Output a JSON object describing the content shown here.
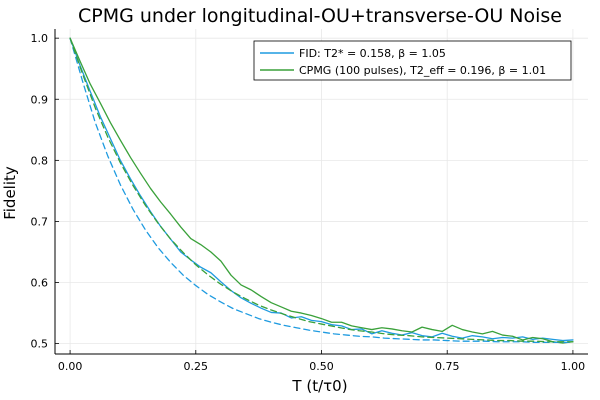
{
  "chart_data": {
    "type": "line",
    "title": "CPMG under longitudinal-OU+transverse-OU Noise",
    "xlabel": "T (t/τ0)",
    "ylabel": "Fidelity",
    "xlim": [
      -0.03,
      1.03
    ],
    "ylim": [
      0.483,
      1.015
    ],
    "xticks": [
      0.0,
      0.25,
      0.5,
      0.75,
      1.0
    ],
    "xtick_labels": [
      "0.00",
      "0.25",
      "0.50",
      "0.75",
      "1.00"
    ],
    "yticks": [
      0.5,
      0.6,
      0.7,
      0.8,
      0.9,
      1.0
    ],
    "ytick_labels": [
      "0.5",
      "0.6",
      "0.7",
      "0.8",
      "0.9",
      "1.0"
    ],
    "grid": true,
    "legend_position": "top-right",
    "series": [
      {
        "name": "FID: T2* = 0.158, β = 1.05",
        "color": "#1f9be0",
        "style": "solid",
        "x": [
          0.0,
          0.02,
          0.04,
          0.06,
          0.08,
          0.1,
          0.12,
          0.14,
          0.16,
          0.18,
          0.2,
          0.22,
          0.24,
          0.26,
          0.28,
          0.3,
          0.32,
          0.34,
          0.36,
          0.38,
          0.4,
          0.42,
          0.44,
          0.46,
          0.48,
          0.5,
          0.52,
          0.54,
          0.56,
          0.58,
          0.6,
          0.62,
          0.64,
          0.66,
          0.68,
          0.7,
          0.72,
          0.74,
          0.76,
          0.78,
          0.8,
          0.82,
          0.84,
          0.86,
          0.88,
          0.9,
          0.92,
          0.94,
          0.96,
          0.98,
          1.0
        ],
        "y": [
          1.0,
          0.955,
          0.913,
          0.872,
          0.836,
          0.8,
          0.77,
          0.742,
          0.716,
          0.692,
          0.671,
          0.65,
          0.637,
          0.625,
          0.616,
          0.601,
          0.587,
          0.575,
          0.566,
          0.558,
          0.551,
          0.55,
          0.542,
          0.544,
          0.538,
          0.536,
          0.531,
          0.529,
          0.523,
          0.524,
          0.516,
          0.521,
          0.517,
          0.514,
          0.518,
          0.513,
          0.511,
          0.517,
          0.512,
          0.509,
          0.513,
          0.511,
          0.508,
          0.51,
          0.509,
          0.511,
          0.507,
          0.509,
          0.507,
          0.505,
          0.506
        ]
      },
      {
        "name": "CPMG (100 pulses), T2_eff = 0.196, β = 1.01",
        "color": "#3aa13a",
        "style": "solid",
        "x": [
          0.0,
          0.02,
          0.04,
          0.06,
          0.08,
          0.1,
          0.12,
          0.14,
          0.16,
          0.18,
          0.2,
          0.22,
          0.24,
          0.26,
          0.28,
          0.3,
          0.32,
          0.34,
          0.36,
          0.38,
          0.4,
          0.42,
          0.44,
          0.46,
          0.48,
          0.5,
          0.52,
          0.54,
          0.56,
          0.58,
          0.6,
          0.62,
          0.64,
          0.66,
          0.68,
          0.7,
          0.72,
          0.74,
          0.76,
          0.78,
          0.8,
          0.82,
          0.84,
          0.86,
          0.88,
          0.9,
          0.92,
          0.94,
          0.96,
          0.98,
          1.0
        ],
        "y": [
          1.0,
          0.962,
          0.925,
          0.894,
          0.862,
          0.833,
          0.805,
          0.779,
          0.754,
          0.732,
          0.712,
          0.691,
          0.672,
          0.662,
          0.65,
          0.635,
          0.612,
          0.596,
          0.588,
          0.577,
          0.567,
          0.56,
          0.553,
          0.55,
          0.546,
          0.541,
          0.535,
          0.535,
          0.529,
          0.526,
          0.523,
          0.526,
          0.524,
          0.521,
          0.519,
          0.527,
          0.523,
          0.52,
          0.53,
          0.523,
          0.519,
          0.516,
          0.52,
          0.514,
          0.512,
          0.506,
          0.51,
          0.508,
          0.503,
          0.501,
          0.503
        ]
      },
      {
        "color": "#1f9be0",
        "style": "dashed",
        "x": [
          0.0,
          0.025,
          0.05,
          0.075,
          0.1,
          0.125,
          0.15,
          0.175,
          0.2,
          0.225,
          0.25,
          0.275,
          0.3,
          0.325,
          0.35,
          0.375,
          0.4,
          0.425,
          0.45,
          0.475,
          0.5,
          0.525,
          0.55,
          0.575,
          0.6,
          0.625,
          0.65,
          0.675,
          0.7,
          0.725,
          0.75,
          0.775,
          0.8,
          0.825,
          0.85,
          0.875,
          0.9,
          0.925,
          0.95,
          0.975,
          1.0
        ],
        "y": [
          1.0,
          0.929,
          0.862,
          0.807,
          0.76,
          0.72,
          0.686,
          0.657,
          0.633,
          0.612,
          0.595,
          0.58,
          0.568,
          0.557,
          0.549,
          0.541,
          0.535,
          0.53,
          0.526,
          0.522,
          0.519,
          0.516,
          0.514,
          0.512,
          0.511,
          0.509,
          0.508,
          0.507,
          0.506,
          0.506,
          0.505,
          0.504,
          0.504,
          0.504,
          0.503,
          0.503,
          0.503,
          0.502,
          0.502,
          0.502,
          0.502
        ]
      },
      {
        "color": "#3aa13a",
        "style": "dashed",
        "x": [
          0.0,
          0.025,
          0.05,
          0.075,
          0.1,
          0.125,
          0.15,
          0.175,
          0.2,
          0.225,
          0.25,
          0.275,
          0.3,
          0.325,
          0.35,
          0.375,
          0.4,
          0.425,
          0.45,
          0.475,
          0.5,
          0.525,
          0.55,
          0.575,
          0.6,
          0.625,
          0.65,
          0.675,
          0.7,
          0.725,
          0.75,
          0.775,
          0.8,
          0.825,
          0.85,
          0.875,
          0.9,
          0.925,
          0.95,
          0.975,
          1.0
        ],
        "y": [
          1.0,
          0.941,
          0.886,
          0.838,
          0.796,
          0.759,
          0.726,
          0.697,
          0.671,
          0.649,
          0.629,
          0.612,
          0.597,
          0.584,
          0.573,
          0.563,
          0.555,
          0.548,
          0.542,
          0.536,
          0.532,
          0.528,
          0.524,
          0.521,
          0.519,
          0.516,
          0.514,
          0.513,
          0.511,
          0.51,
          0.509,
          0.508,
          0.507,
          0.506,
          0.505,
          0.505,
          0.504,
          0.504,
          0.503,
          0.503,
          0.503
        ]
      }
    ]
  }
}
